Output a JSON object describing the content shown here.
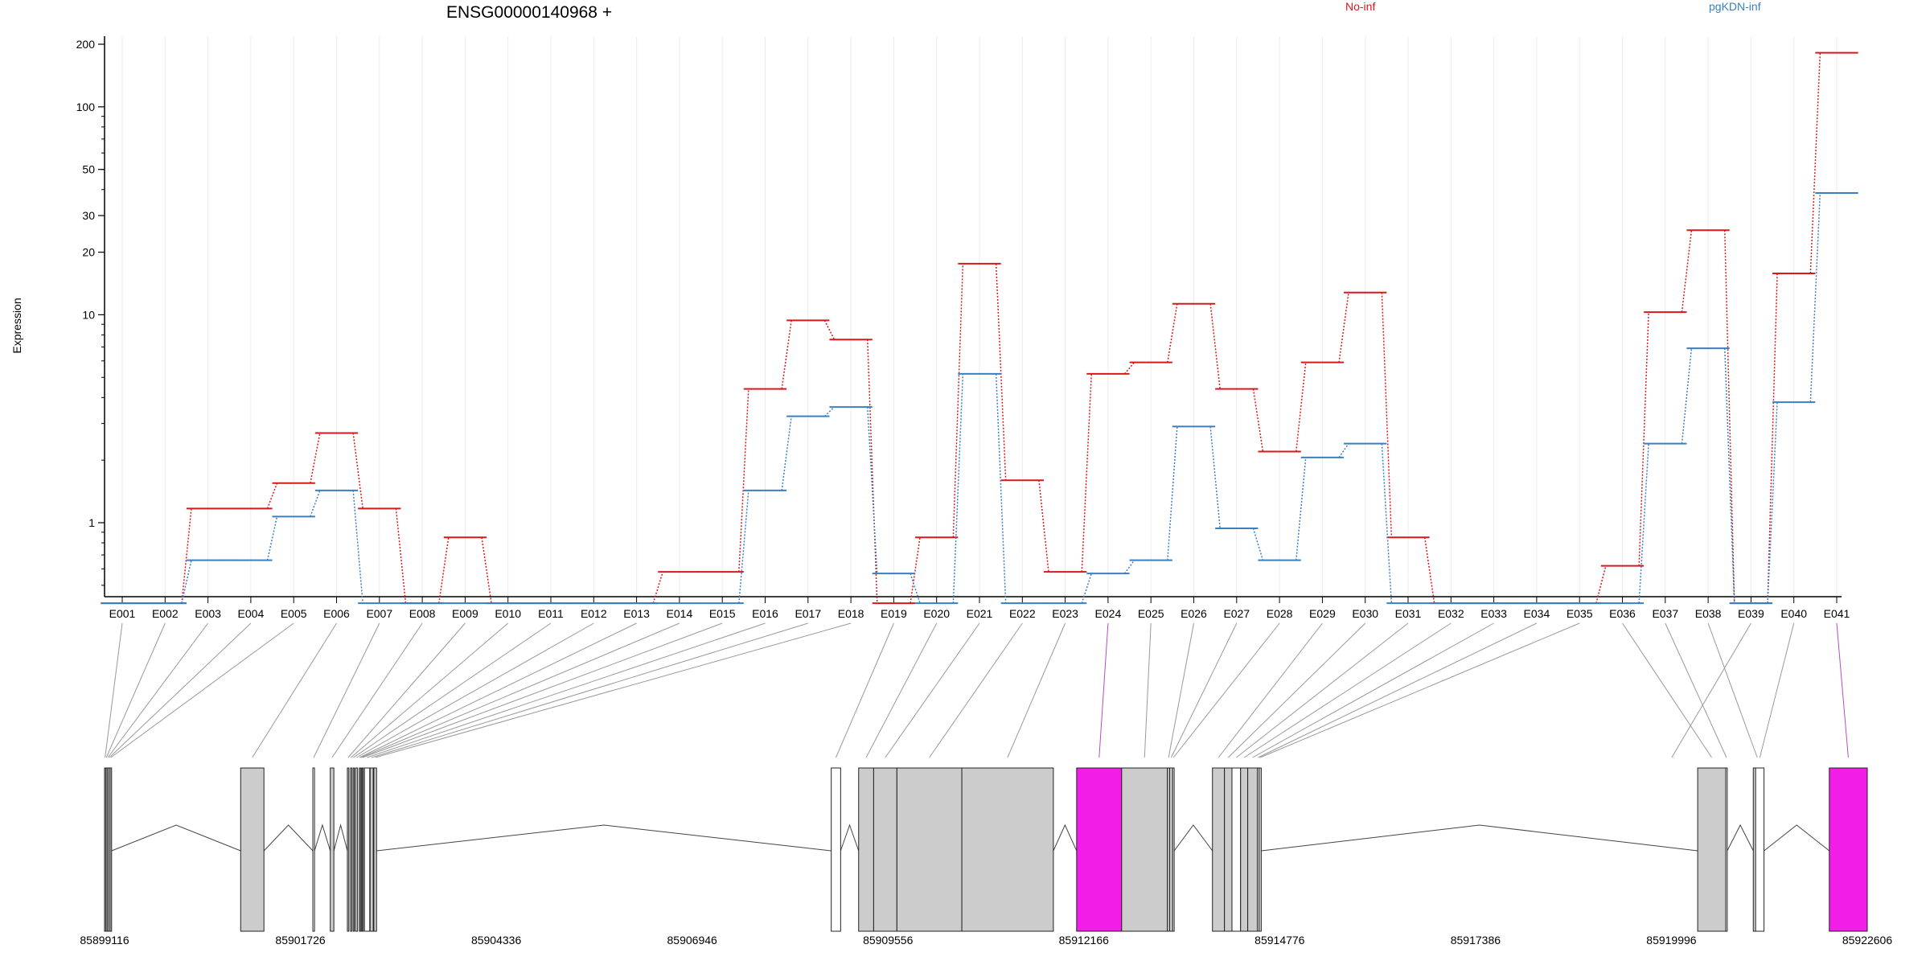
{
  "chart_data": {
    "type": "line",
    "title": "ENSG00000140968 +",
    "ylabel": "Expression",
    "yscale": "log",
    "ylim": [
      0.4,
      240
    ],
    "yticks": [
      1,
      10,
      20,
      30,
      50,
      100,
      200
    ],
    "grid": "vertical",
    "legend_position": "top-right",
    "colors": {
      "No-inf": "#d7191c",
      "pgKDN-inf": "#3a7fc1",
      "highlight": "#f21ee8",
      "exon_fill": "#cccccc"
    },
    "categories": [
      "E001",
      "E002",
      "E003",
      "E004",
      "E005",
      "E006",
      "E007",
      "E008",
      "E009",
      "E010",
      "E011",
      "E012",
      "E013",
      "E014",
      "E015",
      "E016",
      "E017",
      "E018",
      "E019",
      "E020",
      "E021",
      "E022",
      "E023",
      "E024",
      "E025",
      "E026",
      "E027",
      "E028",
      "E029",
      "E030",
      "E031",
      "E032",
      "E033",
      "E034",
      "E035",
      "E036",
      "E037",
      "E038",
      "E039",
      "E040",
      "E041"
    ],
    "series": [
      {
        "name": "No-inf",
        "color": "#d7191c",
        "values": [
          0.41,
          0.41,
          1.17,
          1.17,
          1.55,
          2.7,
          1.17,
          0.41,
          0.85,
          0.41,
          0.41,
          0.41,
          0.41,
          0.58,
          0.58,
          4.4,
          9.4,
          7.6,
          0.41,
          0.85,
          17.6,
          1.6,
          0.58,
          5.2,
          5.9,
          11.3,
          4.4,
          2.2,
          5.9,
          12.8,
          0.85,
          0.41,
          0.41,
          0.41,
          0.41,
          0.62,
          10.3,
          25.5,
          0.41,
          15.8,
          182
        ]
      },
      {
        "name": "pgKDN-inf",
        "color": "#3a7fc1",
        "values": [
          0.41,
          0.41,
          0.66,
          0.66,
          1.07,
          1.43,
          0.41,
          0.41,
          0.41,
          0.41,
          0.41,
          0.41,
          0.41,
          0.41,
          0.41,
          1.43,
          3.25,
          3.6,
          0.57,
          0.41,
          5.2,
          0.41,
          0.41,
          0.57,
          0.66,
          2.9,
          0.94,
          0.66,
          2.06,
          2.4,
          0.41,
          0.41,
          0.41,
          0.41,
          0.41,
          0.41,
          2.4,
          6.9,
          0.41,
          3.8,
          38.5
        ]
      }
    ],
    "highlighted_exons": [
      "E024",
      "E041"
    ],
    "genomic_axis": {
      "range": [
        85899116,
        85922606
      ],
      "tick_labels": [
        "85899116",
        "85901726",
        "85904336",
        "85906946",
        "85909556",
        "85912166",
        "85914776",
        "85917386",
        "85919996",
        "85922606"
      ]
    },
    "exon_intervals": [
      [
        85899116,
        85899130
      ],
      [
        85899130,
        85899150
      ],
      [
        85899150,
        85899170
      ],
      [
        85899170,
        85899190
      ],
      [
        85899190,
        85899210
      ],
      [
        85900930,
        85901240
      ],
      [
        85901892,
        85901914
      ],
      [
        85902124,
        85902172
      ],
      [
        85902352,
        85902372
      ],
      [
        85902394,
        85902404
      ],
      [
        85902428,
        85902437
      ],
      [
        85902460,
        85902488
      ],
      [
        85902512,
        85902517
      ],
      [
        85902526,
        85902542
      ],
      [
        85902549,
        85902562
      ],
      [
        85902579,
        85902650
      ],
      [
        85902655,
        85902696
      ],
      [
        85902705,
        85902741
      ],
      [
        85908800,
        85908925
      ],
      [
        85909165,
        85909365
      ],
      [
        85909365,
        85909675
      ],
      [
        85909675,
        85910540
      ],
      [
        85910540,
        85911760
      ],
      [
        85912070,
        85912670
      ],
      [
        85912670,
        85913280
      ],
      [
        85913280,
        85913310
      ],
      [
        85913310,
        85913350
      ],
      [
        85913350,
        85913370
      ],
      [
        85913880,
        85914040
      ],
      [
        85914040,
        85914140
      ],
      [
        85914140,
        85914255
      ],
      [
        85914255,
        85914350
      ],
      [
        85914350,
        85914478
      ],
      [
        85914478,
        85914500
      ],
      [
        85914500,
        85914530
      ],
      [
        85920346,
        85920720
      ],
      [
        85920720,
        85920740
      ],
      [
        85921087,
        85921193
      ],
      [
        85920000,
        85920000
      ],
      [
        85921118,
        85921230
      ],
      [
        85922100,
        85922606
      ]
    ]
  }
}
